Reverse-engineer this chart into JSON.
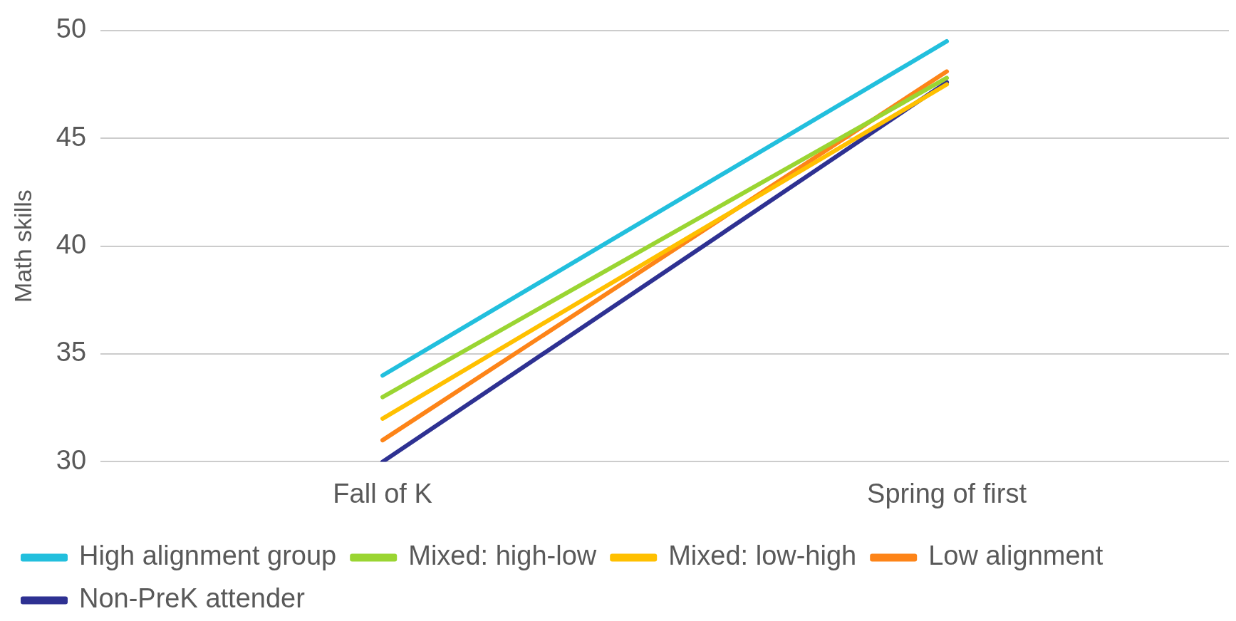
{
  "chart_data": {
    "type": "line",
    "ylabel": "Math skills",
    "categories": [
      "Fall of K",
      "Spring of first"
    ],
    "series": [
      {
        "name": "High alignment group",
        "color": "#22bfdd",
        "values": [
          34,
          49.5
        ]
      },
      {
        "name": "Mixed: high-low",
        "color": "#9ad532",
        "values": [
          33,
          47.8
        ]
      },
      {
        "name": "Mixed: low-high",
        "color": "#ffc000",
        "values": [
          32,
          47.5
        ]
      },
      {
        "name": "Low alignment",
        "color": "#fd8418",
        "values": [
          31,
          48.1
        ]
      },
      {
        "name": "Non-PreK attender",
        "color": "#2e3192",
        "values": [
          30,
          47.6
        ]
      }
    ],
    "ylim": [
      30,
      50
    ],
    "yticks": [
      30,
      35,
      40,
      45,
      50
    ],
    "grid": "y",
    "legend": "bottom",
    "marker": "none",
    "line_style": "solid"
  }
}
